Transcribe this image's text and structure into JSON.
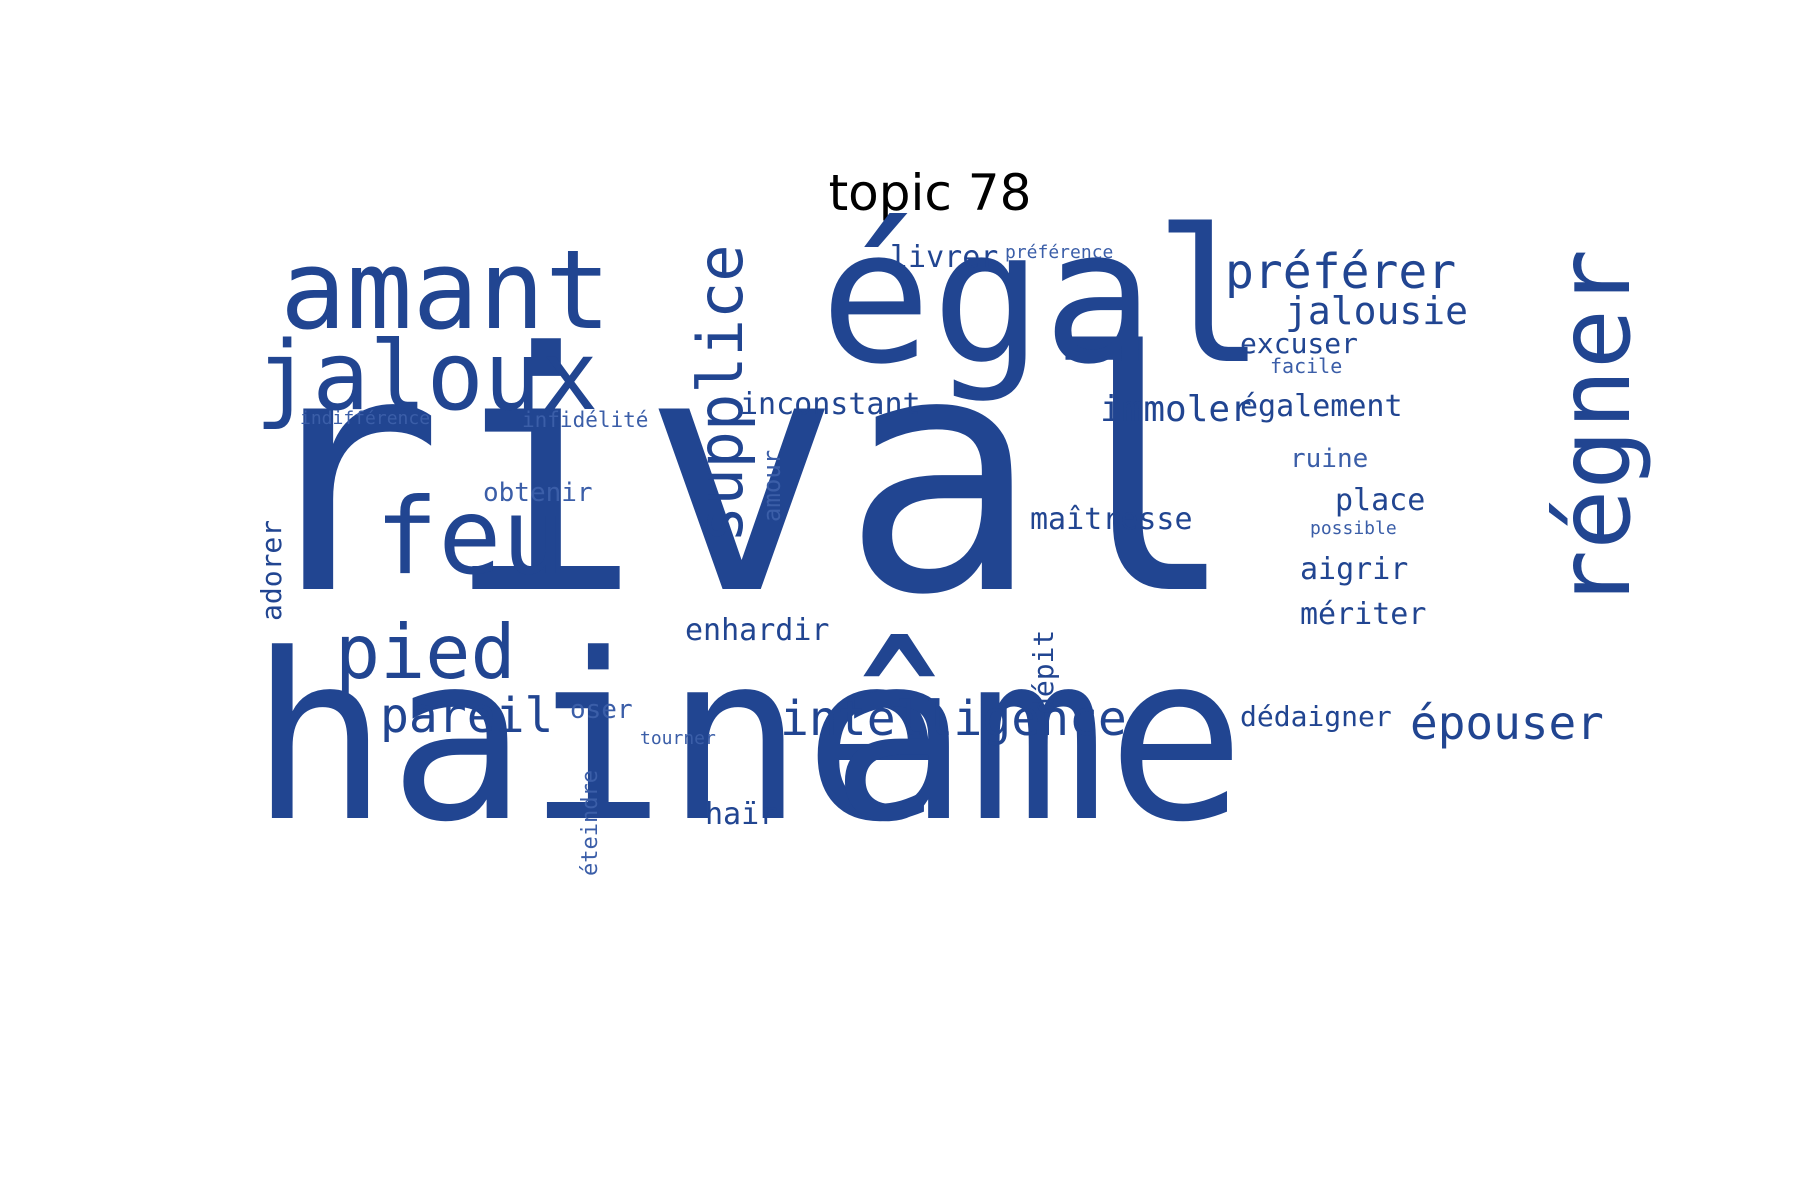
{
  "title": "topic 78",
  "colors": {
    "word": "#214591",
    "word_light": "#3b5ea8",
    "background": "#ffffff",
    "title": "#000000"
  },
  "words": [
    {
      "text": "rival",
      "orientation": "horizontal",
      "weight": 1.0
    },
    {
      "text": "haine",
      "orientation": "horizontal",
      "weight": 0.9
    },
    {
      "text": "âme",
      "orientation": "horizontal",
      "weight": 0.85
    },
    {
      "text": "égal",
      "orientation": "horizontal",
      "weight": 0.6
    },
    {
      "text": "amant",
      "orientation": "horizontal",
      "weight": 0.45
    },
    {
      "text": "jaloux",
      "orientation": "horizontal",
      "weight": 0.38
    },
    {
      "text": "feu",
      "orientation": "horizontal",
      "weight": 0.4
    },
    {
      "text": "régner",
      "orientation": "vertical",
      "weight": 0.38
    },
    {
      "text": "supplice",
      "orientation": "vertical",
      "weight": 0.3
    },
    {
      "text": "pied",
      "orientation": "horizontal",
      "weight": 0.28
    },
    {
      "text": "préférer",
      "orientation": "horizontal",
      "weight": 0.2
    },
    {
      "text": "intelligence",
      "orientation": "horizontal",
      "weight": 0.2
    },
    {
      "text": "pareil",
      "orientation": "horizontal",
      "weight": 0.2
    },
    {
      "text": "épouser",
      "orientation": "horizontal",
      "weight": 0.19
    },
    {
      "text": "jalousie",
      "orientation": "horizontal",
      "weight": 0.15
    },
    {
      "text": "immoler",
      "orientation": "horizontal",
      "weight": 0.14
    },
    {
      "text": "également",
      "orientation": "horizontal",
      "weight": 0.12
    },
    {
      "text": "inconstant",
      "orientation": "horizontal",
      "weight": 0.12
    },
    {
      "text": "excuser",
      "orientation": "horizontal",
      "weight": 0.11
    },
    {
      "text": "livrer",
      "orientation": "horizontal",
      "weight": 0.12
    },
    {
      "text": "maîtresse",
      "orientation": "horizontal",
      "weight": 0.12
    },
    {
      "text": "place",
      "orientation": "horizontal",
      "weight": 0.12
    },
    {
      "text": "aigrir",
      "orientation": "horizontal",
      "weight": 0.12
    },
    {
      "text": "mériter",
      "orientation": "horizontal",
      "weight": 0.12
    },
    {
      "text": "enhardir",
      "orientation": "horizontal",
      "weight": 0.12
    },
    {
      "text": "dédaigner",
      "orientation": "horizontal",
      "weight": 0.11
    },
    {
      "text": "haïr",
      "orientation": "horizontal",
      "weight": 0.11
    },
    {
      "text": "obtenir",
      "orientation": "horizontal",
      "weight": 0.09
    },
    {
      "text": "ruine",
      "orientation": "horizontal",
      "weight": 0.09
    },
    {
      "text": "oser",
      "orientation": "horizontal",
      "weight": 0.09
    },
    {
      "text": "adorer",
      "orientation": "vertical",
      "weight": 0.1
    },
    {
      "text": "amour",
      "orientation": "vertical",
      "weight": 0.08
    },
    {
      "text": "dépit",
      "orientation": "vertical",
      "weight": 0.1
    },
    {
      "text": "éteindre",
      "orientation": "vertical",
      "weight": 0.08
    },
    {
      "text": "facile",
      "orientation": "horizontal",
      "weight": 0.07
    },
    {
      "text": "infidélité",
      "orientation": "horizontal",
      "weight": 0.07
    },
    {
      "text": "indifférence",
      "orientation": "horizontal",
      "weight": 0.06
    },
    {
      "text": "préférence",
      "orientation": "horizontal",
      "weight": 0.06
    },
    {
      "text": "possible",
      "orientation": "horizontal",
      "weight": 0.06
    },
    {
      "text": "tourner",
      "orientation": "horizontal",
      "weight": 0.06
    }
  ]
}
